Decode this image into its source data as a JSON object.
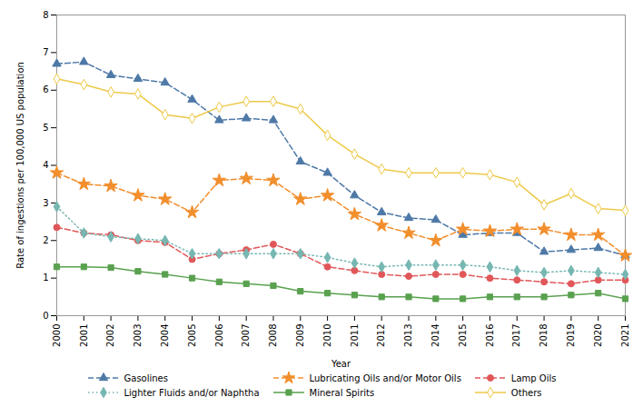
{
  "chart_data": {
    "type": "line",
    "xlabel": "Year",
    "ylabel": "Rate of ingestions per 100,000 US population",
    "x": [
      2000,
      2001,
      2002,
      2003,
      2004,
      2005,
      2006,
      2007,
      2008,
      2009,
      2010,
      2011,
      2012,
      2013,
      2014,
      2015,
      2016,
      2017,
      2018,
      2019,
      2020,
      2021
    ],
    "series": [
      {
        "name": "Gasolines",
        "marker": "triangle",
        "line_style": "dashed",
        "values": [
          6.7,
          6.75,
          6.4,
          6.3,
          6.2,
          5.75,
          5.2,
          5.25,
          5.2,
          4.1,
          3.8,
          3.2,
          2.75,
          2.6,
          2.55,
          2.15,
          2.2,
          2.2,
          1.7,
          1.75,
          1.8,
          1.6
        ]
      },
      {
        "name": "Lubricating Oils and/or Motor Oils",
        "marker": "star",
        "line_style": "dashed",
        "values": [
          3.8,
          3.5,
          3.45,
          3.2,
          3.1,
          2.75,
          3.6,
          3.65,
          3.6,
          3.1,
          3.2,
          2.7,
          2.4,
          2.2,
          2.0,
          2.3,
          2.25,
          2.3,
          2.3,
          2.15,
          2.15,
          1.6
        ]
      },
      {
        "name": "Lamp Oils",
        "marker": "circle",
        "line_style": "dashed",
        "values": [
          2.35,
          2.2,
          2.15,
          2.0,
          1.95,
          1.5,
          1.65,
          1.75,
          1.9,
          1.65,
          1.3,
          1.2,
          1.1,
          1.05,
          1.1,
          1.1,
          1.0,
          0.95,
          0.9,
          0.85,
          0.95,
          0.95
        ]
      },
      {
        "name": "Lighter Fluids and/or Naphtha",
        "marker": "diamond",
        "line_style": "dotted",
        "values": [
          2.9,
          2.2,
          2.1,
          2.05,
          2.0,
          1.65,
          1.65,
          1.65,
          1.65,
          1.65,
          1.55,
          1.4,
          1.3,
          1.35,
          1.35,
          1.35,
          1.3,
          1.2,
          1.15,
          1.2,
          1.15,
          1.1
        ]
      },
      {
        "name": "Mineral Spirits",
        "marker": "square",
        "line_style": "solid",
        "values": [
          1.3,
          1.3,
          1.28,
          1.18,
          1.1,
          1.0,
          0.9,
          0.85,
          0.8,
          0.65,
          0.6,
          0.55,
          0.5,
          0.5,
          0.45,
          0.45,
          0.5,
          0.5,
          0.5,
          0.55,
          0.6,
          0.45
        ]
      },
      {
        "name": "Others",
        "marker": "open_diamond",
        "line_style": "solid",
        "values": [
          6.3,
          6.15,
          5.95,
          5.9,
          5.35,
          5.25,
          5.55,
          5.7,
          5.7,
          5.5,
          4.8,
          4.3,
          3.9,
          3.8,
          3.8,
          3.8,
          3.75,
          3.55,
          2.95,
          3.25,
          2.85,
          2.8
        ]
      }
    ],
    "xlim": [
      2000,
      2021
    ],
    "xticks": [
      2000,
      2001,
      2002,
      2003,
      2004,
      2005,
      2006,
      2007,
      2008,
      2009,
      2010,
      2011,
      2012,
      2013,
      2014,
      2015,
      2016,
      2017,
      2018,
      2019,
      2020,
      2021
    ],
    "ylim": [
      0,
      8
    ],
    "yticks": [
      0,
      1,
      2,
      3,
      4,
      5,
      6,
      7,
      8
    ],
    "legend": "bottom"
  }
}
